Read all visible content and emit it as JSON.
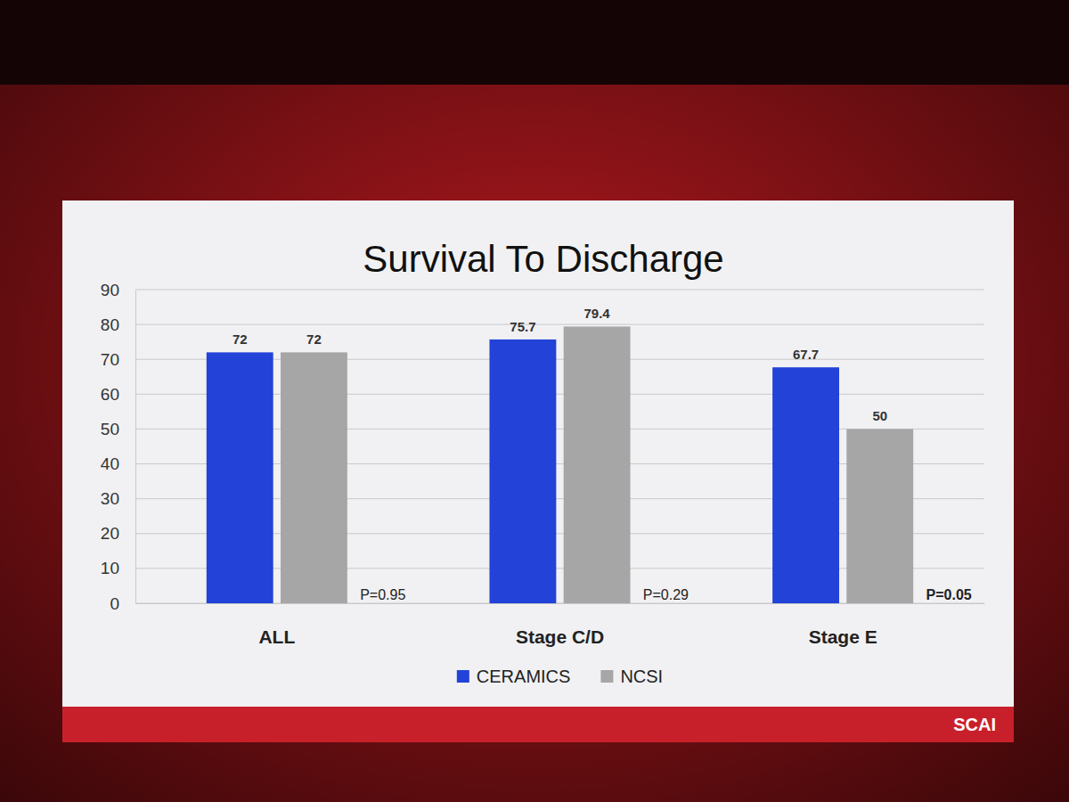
{
  "chart_data": {
    "type": "bar",
    "title": "Survival To Discharge",
    "categories": [
      "ALL",
      "Stage C/D",
      "Stage E"
    ],
    "series": [
      {
        "name": "CERAMICS",
        "color": "#2242d8",
        "values": [
          72,
          75.7,
          67.7
        ]
      },
      {
        "name": "NCSI",
        "color": "#a6a6a6",
        "values": [
          72,
          79.4,
          50
        ]
      }
    ],
    "annotations": [
      "P=0.95",
      "P=0.29",
      "P=0.05"
    ],
    "logo": "SCAI",
    "ylim": [
      0,
      90
    ],
    "yticks": [
      0,
      10,
      20,
      30,
      40,
      50,
      60,
      70,
      80,
      90
    ],
    "grid": true,
    "data_labels": true,
    "legend": "bottom"
  }
}
